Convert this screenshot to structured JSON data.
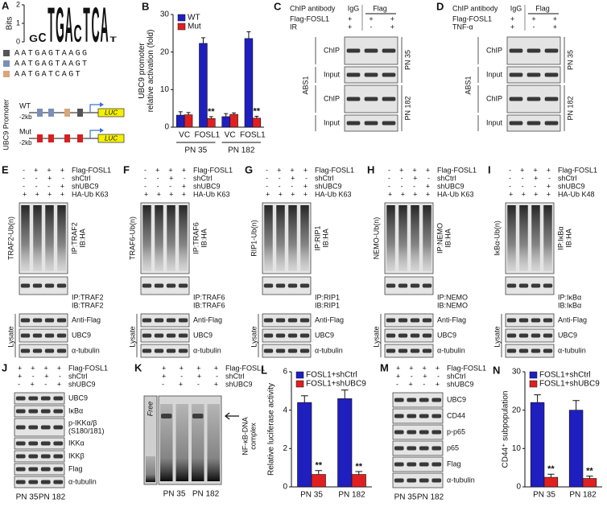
{
  "logo": {
    "letter": "A",
    "ylabel": "Bits",
    "ylim": [
      0,
      2
    ],
    "yticks": [
      0,
      1,
      2
    ],
    "colors": {
      "A": "#2a9d2a",
      "C": "#2a4fd6",
      "G": "#e0a000",
      "T": "#d62020"
    },
    "letters": [
      {
        "letter": "G",
        "bits": 0.4
      },
      {
        "letter": "C",
        "bits": 0.5
      },
      {
        "letter": "T",
        "bits": 2
      },
      {
        "letter": "G",
        "bits": 2
      },
      {
        "letter": "A",
        "bits": 2
      },
      {
        "letter": "C",
        "bits": 1
      },
      {
        "letter": "T",
        "bits": 2
      },
      {
        "letter": "C",
        "bits": 2
      },
      {
        "letter": "A",
        "bits": 2
      },
      {
        "letter": "T",
        "bits": 0.3
      }
    ],
    "sequences": [
      "AATGAGTAAGG",
      "AATGAGTAAGT",
      "AATGATCAGT"
    ],
    "marker_colors": [
      "#555555",
      "#7a8fb8",
      "#d9a57a"
    ],
    "promoter": {
      "title": "UBC9 Promoter",
      "rows": [
        "WT",
        "Mut"
      ],
      "start": "-2kb",
      "reporter": "LUC"
    }
  },
  "chart_data": [
    {
      "type": "bar",
      "letter": "B",
      "ylabel": [
        "UBC9 promoter",
        "relative activation (fold)"
      ],
      "categories": [
        "VC",
        "FOSL1",
        "VC",
        "FOSL1"
      ],
      "group_labels": [
        "PN 35",
        "PN 182"
      ],
      "ylim": [
        0,
        30
      ],
      "yticks": [
        0,
        10,
        20,
        30
      ],
      "series": [
        {
          "name": "WT",
          "color": "#1f1fbf",
          "values": [
            3.2,
            22.3,
            2.8,
            23.6
          ],
          "errors": [
            0.9,
            1.5,
            0.8,
            1.8
          ]
        },
        {
          "name": "Mut",
          "color": "#e02020",
          "values": [
            3.3,
            2.3,
            3.4,
            2.4
          ],
          "errors": [
            0.6,
            0.5,
            0.4,
            0.5
          ],
          "labels": [
            null,
            "**",
            null,
            "**"
          ]
        }
      ]
    },
    {
      "type": "bar",
      "letter": "L",
      "ylabel": [
        "Relative luciferase activity"
      ],
      "categories": [
        "PN 35",
        "PN 182"
      ],
      "ylim": [
        0,
        6
      ],
      "yticks": [
        0,
        2,
        4,
        6
      ],
      "series": [
        {
          "name": "FOSL1+shCtrl",
          "color": "#1f1fbf",
          "values": [
            4.4,
            4.6
          ],
          "errors": [
            0.35,
            0.45
          ]
        },
        {
          "name": "FOSL1+shUBC9",
          "color": "#e02020",
          "values": [
            0.65,
            0.65
          ],
          "errors": [
            0.2,
            0.15
          ],
          "labels": [
            "**",
            "**"
          ]
        }
      ]
    },
    {
      "type": "bar",
      "letter": "N",
      "ylabel": [
        "CD44⁺ subpopulation"
      ],
      "categories": [
        "PN 35",
        "PN 182"
      ],
      "ylim": [
        0,
        30
      ],
      "yticks": [
        0,
        10,
        20,
        30
      ],
      "series": [
        {
          "name": "FOSL1+shCtrl",
          "color": "#1f1fbf",
          "values": [
            22,
            20
          ],
          "errors": [
            2,
            2.5
          ]
        },
        {
          "name": "FOSL1+shUBC9",
          "color": "#e02020",
          "values": [
            2.5,
            2.2
          ],
          "errors": [
            0.8,
            0.6
          ],
          "labels": [
            "**",
            "**"
          ]
        }
      ]
    }
  ],
  "chip_panels": [
    {
      "letter": "C",
      "header": {
        "label": "ChIP antibody",
        "columns": [
          "IgG",
          "Flag"
        ]
      },
      "rows": [
        {
          "label": "Flag-FOSL1",
          "signs": "+ + +"
        },
        {
          "label": "IR",
          "signs": "+ - +"
        }
      ],
      "side_label": "ABS1",
      "blots": [
        "ChIP",
        "Input",
        "ChIP",
        "Input"
      ],
      "right_labels": [
        "PN 35",
        "PN 182"
      ]
    },
    {
      "letter": "D",
      "header": {
        "label": "ChIP antibody",
        "columns": [
          "IgG",
          "Flag"
        ]
      },
      "rows": [
        {
          "label": "Flag-FOSL1",
          "signs": "+ + +"
        },
        {
          "label": "TNF-α",
          "signs": "+ - +"
        }
      ],
      "side_label": "ABS1",
      "blots": [
        "ChIP",
        "Input",
        "ChIP",
        "Input"
      ],
      "right_labels": [
        "PN 35",
        "PN 182"
      ]
    }
  ],
  "blot_panels": [
    {
      "letter": "E",
      "rows": [
        {
          "label": "Flag-FOSL1",
          "signs": "- + + +"
        },
        {
          "label": "shCtrl",
          "signs": "- - + -"
        },
        {
          "label": "shUBC9",
          "signs": "- - - +"
        },
        {
          "label": "HA-Ub K63",
          "signs": "+ + + +"
        }
      ],
      "side_label": "TRAF2-Ub(n)",
      "blots": [
        {
          "kind": "smear",
          "labels": [
            "IP:TRAF2",
            "IB:HA"
          ]
        },
        {
          "kind": "band",
          "labels": [
            "IP:TRAF2",
            "IB:TRAF2"
          ]
        }
      ],
      "lysate": {
        "label": "Lysate",
        "blots": [
          "Anti-Flag",
          "UBC9",
          "α-tubulin"
        ]
      }
    },
    {
      "letter": "F",
      "rows": [
        {
          "label": "Flag-FOSL1",
          "signs": "- + + +"
        },
        {
          "label": "shCtrl",
          "signs": "- - + -"
        },
        {
          "label": "shUBC9",
          "signs": "- - - +"
        },
        {
          "label": "HA-Ub K63",
          "signs": "+ + + +"
        }
      ],
      "side_label": "TRAF6-Ub(n)",
      "blots": [
        {
          "kind": "smear",
          "labels": [
            "IP:TRAF6",
            "IB:HA"
          ]
        },
        {
          "kind": "band",
          "labels": [
            "IP:TRAF6",
            "IB:TRAF6"
          ]
        }
      ],
      "lysate": {
        "label": "Lysate",
        "blots": [
          "Anti-Flag",
          "UBC9",
          "α-tubulin"
        ]
      }
    },
    {
      "letter": "G",
      "rows": [
        {
          "label": "Flag-FOSL1",
          "signs": "- + + +"
        },
        {
          "label": "shCtrl",
          "signs": "- - + -"
        },
        {
          "label": "shUBC9",
          "signs": "- - - +"
        },
        {
          "label": "HA-Ub K63",
          "signs": "+ + + +"
        }
      ],
      "side_label": "RIP1-Ub(n)",
      "blots": [
        {
          "kind": "smear",
          "labels": [
            "IP:RIP1",
            "IB:HA"
          ]
        },
        {
          "kind": "band",
          "labels": [
            "IP:RIP1",
            "IB:RIP1"
          ]
        }
      ],
      "lysate": {
        "label": "Lysate",
        "blots": [
          "Anti-Flag",
          "UBC9",
          "α-tubulin"
        ]
      }
    },
    {
      "letter": "H",
      "rows": [
        {
          "label": "Flag-FOSL1",
          "signs": "- + + +"
        },
        {
          "label": "shCtrl",
          "signs": "- - + -"
        },
        {
          "label": "shUBC9",
          "signs": "- - - +"
        },
        {
          "label": "HA-Ub K63",
          "signs": "+ + + +"
        }
      ],
      "side_label": "NEMO-Ub(n)",
      "blots": [
        {
          "kind": "smear",
          "labels": [
            "IP:NEMO",
            "IB:HA"
          ]
        },
        {
          "kind": "band",
          "labels": [
            "IP:NEMO",
            "IB:NEMO"
          ]
        }
      ],
      "lysate": {
        "label": "Lysate",
        "blots": [
          "Anti-Flag",
          "UBC9",
          "α-tubulin"
        ]
      }
    },
    {
      "letter": "I",
      "rows": [
        {
          "label": "Flag-FOSL1",
          "signs": "- + + +"
        },
        {
          "label": "shCtrl",
          "signs": "- - + -"
        },
        {
          "label": "shUBC9",
          "signs": "- - - +"
        },
        {
          "label": "HA-Ub K48",
          "signs": "+ + + +"
        }
      ],
      "side_label": "IκBα-Ub(n)",
      "blots": [
        {
          "kind": "smear",
          "labels": [
            "IP:IκBα",
            "IB:HA"
          ]
        },
        {
          "kind": "band",
          "labels": [
            "IP:IκBα",
            "IB:IκBα"
          ]
        }
      ],
      "lysate": {
        "label": "Lysate",
        "blots": [
          "Anti-Flag",
          "UBC9",
          "α-tubulin"
        ]
      }
    }
  ],
  "lane_panels": [
    {
      "letter": "J",
      "rows": [
        {
          "label": "Flag-FOSL1",
          "signs": "+ + + +"
        },
        {
          "label": "shCtrl",
          "signs": "+ - + -"
        },
        {
          "label": "shUBC9",
          "signs": "- + - +"
        }
      ],
      "blots": [
        [
          "UBC9"
        ],
        [
          "IκBα"
        ],
        [
          "p-IKKα/β",
          "(S180/181)"
        ],
        [
          "IKKα"
        ],
        [
          "IKKβ"
        ],
        [
          "Flag"
        ],
        [
          "α-tubulin"
        ]
      ],
      "bottom_labels": [
        "PN 35",
        "PN 182"
      ]
    },
    {
      "letter": "M",
      "rows": [
        {
          "label": "Flag-FOSL1",
          "signs": "+ + + +"
        },
        {
          "label": "shCtrl",
          "signs": "+ - + -"
        },
        {
          "label": "shUBC9",
          "signs": "- + - +"
        }
      ],
      "blots": [
        [
          "UBC9"
        ],
        [
          "CD44"
        ],
        [
          "p-p65"
        ],
        [
          "p65"
        ],
        [
          "Flag"
        ],
        [
          "α-tubulin"
        ]
      ],
      "bottom_labels": [
        "PN 35",
        "PN 182"
      ]
    }
  ],
  "emsa_panel": {
    "letter": "K",
    "rows": [
      {
        "label": "Flag-FOSL1",
        "signs": "+ + + +"
      },
      {
        "label": "shCtrl",
        "signs": "+ - + -"
      },
      {
        "label": "shUBC9",
        "signs": "- + - +"
      }
    ],
    "lane_label": "Free",
    "arrow_label": [
      "NF-κB-DNA",
      "complex"
    ],
    "bottom_labels": [
      "PN 35",
      "PN 182"
    ]
  }
}
